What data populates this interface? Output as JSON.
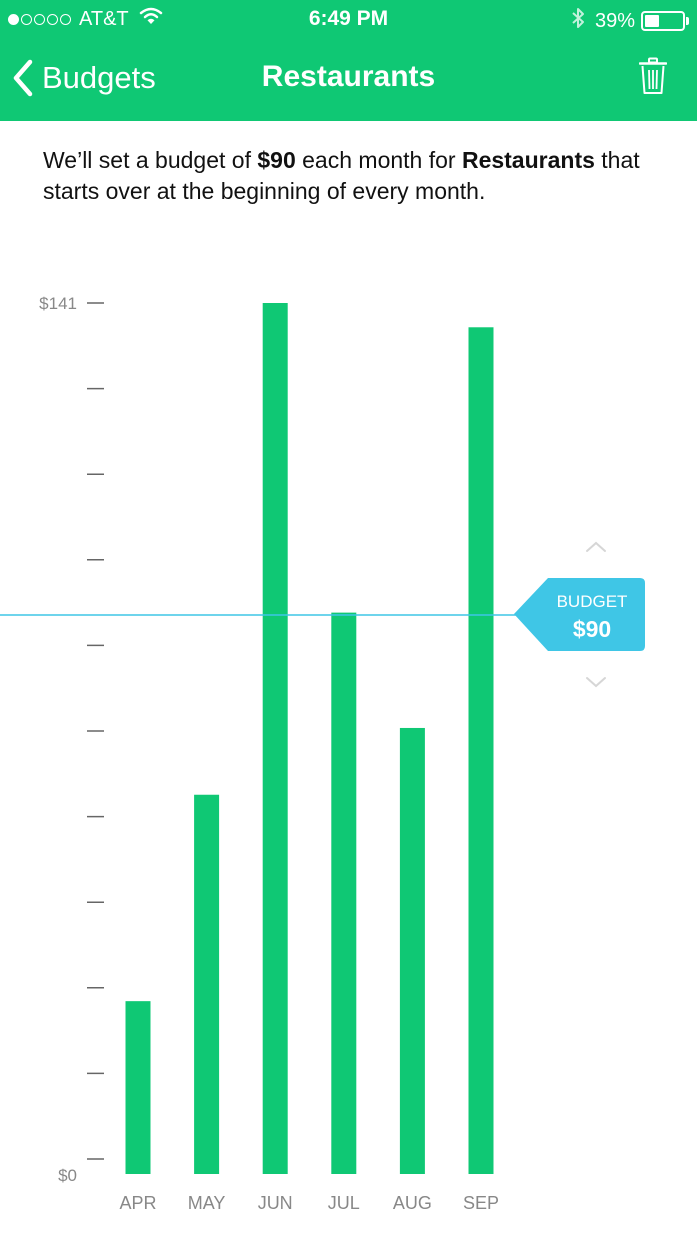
{
  "status_bar": {
    "signal_dots_filled": 1,
    "signal_dots_total": 5,
    "carrier": "AT&T",
    "wifi_icon": "wifi-icon",
    "time": "6:49 PM",
    "bluetooth_icon": "bluetooth-icon",
    "battery_percent": "39%",
    "battery_level": 0.39
  },
  "nav": {
    "back_label": "Budgets",
    "title": "Restaurants",
    "trash_icon": "trash-icon"
  },
  "description": {
    "part1": "We’ll set a budget of ",
    "amount": "$90",
    "part2": " each month for ",
    "category": "Restaurants",
    "part3": " that starts over at the beginning of every month."
  },
  "chart_data": {
    "type": "bar",
    "categories": [
      "APR",
      "MAY",
      "JUN",
      "JUL",
      "AUG",
      "SEP"
    ],
    "values": [
      26,
      60,
      141,
      90,
      71,
      137
    ],
    "ylim": [
      0,
      141
    ],
    "y_tick_labels": [
      "$0",
      "$141"
    ],
    "y_tick_count": 11,
    "grid": false,
    "budget_line": {
      "value": 90,
      "label": "BUDGET",
      "amount": "$90"
    },
    "bar_color": "#0fc874",
    "budget_color": "#3fc6e6"
  },
  "colors": {
    "header": "#0fc874",
    "budget": "#3fc6e6",
    "axis_text": "#888888"
  }
}
